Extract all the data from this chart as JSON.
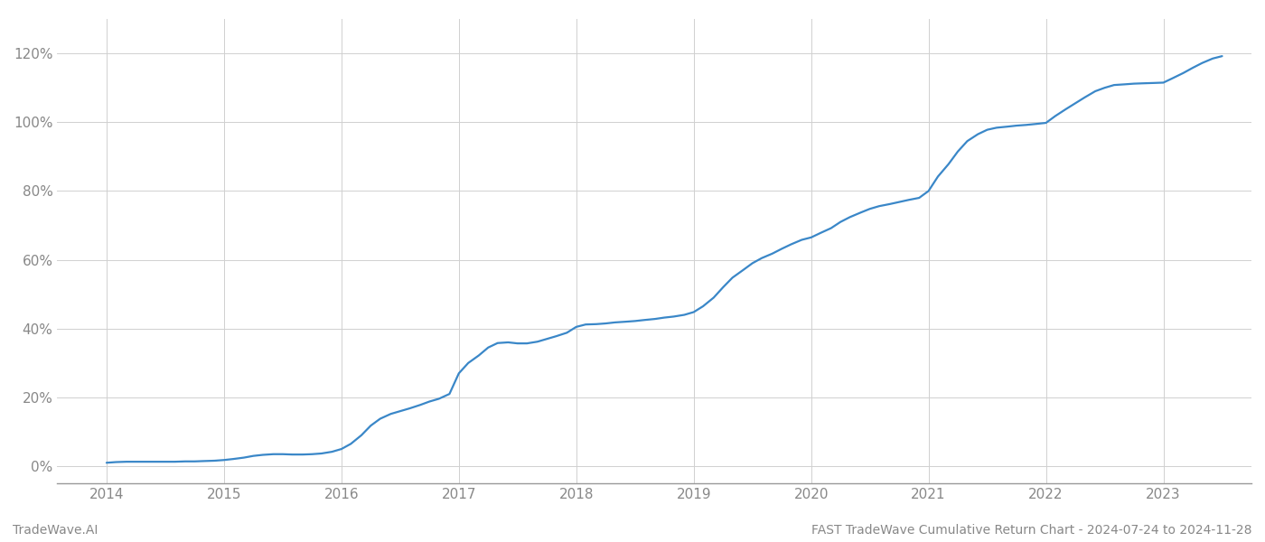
{
  "footer_left": "TradeWave.AI",
  "footer_right": "FAST TradeWave Cumulative Return Chart - 2024-07-24 to 2024-11-28",
  "line_color": "#3a87c8",
  "background_color": "#ffffff",
  "grid_color": "#d0d0d0",
  "x_years": [
    2014,
    2015,
    2016,
    2017,
    2018,
    2019,
    2020,
    2021,
    2022,
    2023
  ],
  "xlim": [
    2013.58,
    2023.75
  ],
  "ylim": [
    -0.05,
    1.3
  ],
  "yticks": [
    0.0,
    0.2,
    0.4,
    0.6,
    0.8,
    1.0,
    1.2
  ],
  "ytick_labels": [
    "0%",
    "20%",
    "40%",
    "60%",
    "80%",
    "100%",
    "120%"
  ],
  "data_x": [
    2014.0,
    2014.08,
    2014.17,
    2014.25,
    2014.33,
    2014.42,
    2014.5,
    2014.58,
    2014.67,
    2014.75,
    2014.83,
    2014.92,
    2015.0,
    2015.08,
    2015.17,
    2015.25,
    2015.33,
    2015.42,
    2015.5,
    2015.58,
    2015.67,
    2015.75,
    2015.83,
    2015.92,
    2016.0,
    2016.08,
    2016.17,
    2016.25,
    2016.33,
    2016.42,
    2016.5,
    2016.58,
    2016.67,
    2016.75,
    2016.83,
    2016.92,
    2017.0,
    2017.08,
    2017.17,
    2017.25,
    2017.33,
    2017.42,
    2017.5,
    2017.58,
    2017.67,
    2017.75,
    2017.83,
    2017.92,
    2018.0,
    2018.08,
    2018.17,
    2018.25,
    2018.33,
    2018.42,
    2018.5,
    2018.58,
    2018.67,
    2018.75,
    2018.83,
    2018.92,
    2019.0,
    2019.08,
    2019.17,
    2019.25,
    2019.33,
    2019.42,
    2019.5,
    2019.58,
    2019.67,
    2019.75,
    2019.83,
    2019.92,
    2020.0,
    2020.08,
    2020.17,
    2020.25,
    2020.33,
    2020.42,
    2020.5,
    2020.58,
    2020.67,
    2020.75,
    2020.83,
    2020.92,
    2021.0,
    2021.08,
    2021.17,
    2021.25,
    2021.33,
    2021.42,
    2021.5,
    2021.58,
    2021.67,
    2021.75,
    2021.83,
    2021.92,
    2022.0,
    2022.08,
    2022.17,
    2022.25,
    2022.33,
    2022.42,
    2022.5,
    2022.58,
    2022.67,
    2022.75,
    2022.83,
    2022.92,
    2023.0,
    2023.08,
    2023.17,
    2023.25,
    2023.33,
    2023.42,
    2023.5
  ],
  "data_y": [
    0.01,
    0.012,
    0.013,
    0.013,
    0.013,
    0.013,
    0.013,
    0.013,
    0.014,
    0.014,
    0.015,
    0.016,
    0.018,
    0.021,
    0.025,
    0.03,
    0.033,
    0.035,
    0.035,
    0.034,
    0.034,
    0.035,
    0.037,
    0.042,
    0.05,
    0.065,
    0.09,
    0.118,
    0.138,
    0.152,
    0.16,
    0.168,
    0.178,
    0.188,
    0.196,
    0.21,
    0.27,
    0.3,
    0.322,
    0.345,
    0.358,
    0.36,
    0.357,
    0.357,
    0.362,
    0.37,
    0.378,
    0.388,
    0.405,
    0.412,
    0.413,
    0.415,
    0.418,
    0.42,
    0.422,
    0.425,
    0.428,
    0.432,
    0.435,
    0.44,
    0.448,
    0.465,
    0.49,
    0.52,
    0.548,
    0.57,
    0.59,
    0.605,
    0.618,
    0.632,
    0.645,
    0.658,
    0.665,
    0.678,
    0.692,
    0.71,
    0.724,
    0.737,
    0.748,
    0.756,
    0.762,
    0.768,
    0.774,
    0.78,
    0.8,
    0.842,
    0.878,
    0.915,
    0.945,
    0.965,
    0.978,
    0.984,
    0.987,
    0.99,
    0.992,
    0.995,
    0.998,
    1.018,
    1.038,
    1.055,
    1.072,
    1.09,
    1.1,
    1.108,
    1.11,
    1.112,
    1.113,
    1.114,
    1.115,
    1.128,
    1.143,
    1.158,
    1.172,
    1.185,
    1.192
  ],
  "tick_color": "#888888",
  "spine_color": "#999999",
  "footer_fontsize": 10,
  "tick_fontsize": 11,
  "line_width": 1.6
}
